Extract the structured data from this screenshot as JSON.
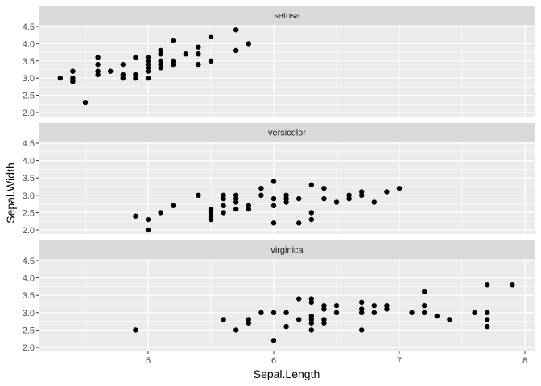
{
  "chart_data": {
    "type": "scatter",
    "layout": "facet_wrap (1 column, 3 rows)",
    "xlabel": "Sepal.Length",
    "ylabel": "Sepal.Width",
    "xlim": [
      4.2,
      8.1
    ],
    "ylim": [
      2.0,
      4.5
    ],
    "x_ticks": [
      5,
      6,
      7,
      8
    ],
    "y_ticks": [
      "2.0",
      "2.5",
      "3.0",
      "3.5",
      "4.0",
      "4.5"
    ],
    "grid": true,
    "legend": "none",
    "colors": {
      "panel_bg": "#ebebeb",
      "strip_bg": "#d9d9d9",
      "grid": "#ffffff",
      "point": "#000000"
    },
    "facets": [
      {
        "label": "setosa",
        "points": [
          [
            4.3,
            3.0
          ],
          [
            4.4,
            2.9
          ],
          [
            4.4,
            3.0
          ],
          [
            4.4,
            3.2
          ],
          [
            4.5,
            2.3
          ],
          [
            4.6,
            3.1
          ],
          [
            4.6,
            3.2
          ],
          [
            4.6,
            3.4
          ],
          [
            4.6,
            3.6
          ],
          [
            4.7,
            3.2
          ],
          [
            4.8,
            3.0
          ],
          [
            4.8,
            3.1
          ],
          [
            4.8,
            3.4
          ],
          [
            4.9,
            3.0
          ],
          [
            4.9,
            3.1
          ],
          [
            4.9,
            3.6
          ],
          [
            5.0,
            3.0
          ],
          [
            5.0,
            3.2
          ],
          [
            5.0,
            3.3
          ],
          [
            5.0,
            3.4
          ],
          [
            5.0,
            3.5
          ],
          [
            5.0,
            3.6
          ],
          [
            5.1,
            3.3
          ],
          [
            5.1,
            3.4
          ],
          [
            5.1,
            3.5
          ],
          [
            5.1,
            3.7
          ],
          [
            5.1,
            3.8
          ],
          [
            5.2,
            3.4
          ],
          [
            5.2,
            3.5
          ],
          [
            5.2,
            4.1
          ],
          [
            5.3,
            3.7
          ],
          [
            5.4,
            3.4
          ],
          [
            5.4,
            3.7
          ],
          [
            5.4,
            3.9
          ],
          [
            5.5,
            3.5
          ],
          [
            5.5,
            4.2
          ],
          [
            5.7,
            3.8
          ],
          [
            5.7,
            4.4
          ],
          [
            5.8,
            4.0
          ]
        ]
      },
      {
        "label": "versicolor",
        "points": [
          [
            4.9,
            2.4
          ],
          [
            5.0,
            2.0
          ],
          [
            5.0,
            2.3
          ],
          [
            5.1,
            2.5
          ],
          [
            5.2,
            2.7
          ],
          [
            5.4,
            3.0
          ],
          [
            5.5,
            2.3
          ],
          [
            5.5,
            2.4
          ],
          [
            5.5,
            2.5
          ],
          [
            5.5,
            2.6
          ],
          [
            5.6,
            2.5
          ],
          [
            5.6,
            2.7
          ],
          [
            5.6,
            2.9
          ],
          [
            5.6,
            3.0
          ],
          [
            5.7,
            2.6
          ],
          [
            5.7,
            2.8
          ],
          [
            5.7,
            2.9
          ],
          [
            5.7,
            3.0
          ],
          [
            5.8,
            2.6
          ],
          [
            5.8,
            2.7
          ],
          [
            5.9,
            3.0
          ],
          [
            5.9,
            3.2
          ],
          [
            6.0,
            2.2
          ],
          [
            6.0,
            2.7
          ],
          [
            6.0,
            2.9
          ],
          [
            6.0,
            3.4
          ],
          [
            6.1,
            2.8
          ],
          [
            6.1,
            2.9
          ],
          [
            6.1,
            3.0
          ],
          [
            6.2,
            2.2
          ],
          [
            6.2,
            2.9
          ],
          [
            6.3,
            2.3
          ],
          [
            6.3,
            2.5
          ],
          [
            6.3,
            3.3
          ],
          [
            6.4,
            2.9
          ],
          [
            6.4,
            3.2
          ],
          [
            6.5,
            2.8
          ],
          [
            6.6,
            2.9
          ],
          [
            6.6,
            3.0
          ],
          [
            6.7,
            3.0
          ],
          [
            6.7,
            3.1
          ],
          [
            6.8,
            2.8
          ],
          [
            6.9,
            3.1
          ],
          [
            7.0,
            3.2
          ]
        ]
      },
      {
        "label": "virginica",
        "points": [
          [
            4.9,
            2.5
          ],
          [
            5.6,
            2.8
          ],
          [
            5.7,
            2.5
          ],
          [
            5.8,
            2.7
          ],
          [
            5.8,
            2.8
          ],
          [
            5.9,
            3.0
          ],
          [
            6.0,
            2.2
          ],
          [
            6.0,
            3.0
          ],
          [
            6.1,
            2.6
          ],
          [
            6.1,
            3.0
          ],
          [
            6.2,
            2.8
          ],
          [
            6.2,
            3.4
          ],
          [
            6.3,
            2.5
          ],
          [
            6.3,
            2.7
          ],
          [
            6.3,
            2.8
          ],
          [
            6.3,
            2.9
          ],
          [
            6.3,
            3.3
          ],
          [
            6.3,
            3.4
          ],
          [
            6.4,
            2.7
          ],
          [
            6.4,
            2.8
          ],
          [
            6.4,
            3.1
          ],
          [
            6.4,
            3.2
          ],
          [
            6.5,
            3.0
          ],
          [
            6.5,
            3.2
          ],
          [
            6.7,
            2.5
          ],
          [
            6.7,
            3.0
          ],
          [
            6.7,
            3.1
          ],
          [
            6.7,
            3.3
          ],
          [
            6.8,
            3.0
          ],
          [
            6.8,
            3.2
          ],
          [
            6.9,
            3.1
          ],
          [
            6.9,
            3.2
          ],
          [
            7.1,
            3.0
          ],
          [
            7.2,
            3.0
          ],
          [
            7.2,
            3.2
          ],
          [
            7.2,
            3.6
          ],
          [
            7.3,
            2.9
          ],
          [
            7.4,
            2.8
          ],
          [
            7.6,
            3.0
          ],
          [
            7.7,
            2.6
          ],
          [
            7.7,
            2.8
          ],
          [
            7.7,
            3.0
          ],
          [
            7.7,
            3.8
          ],
          [
            7.9,
            3.8
          ]
        ]
      }
    ]
  }
}
